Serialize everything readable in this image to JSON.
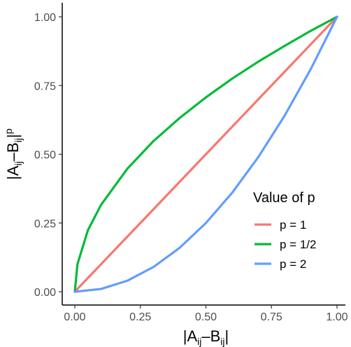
{
  "chart_data": {
    "type": "line",
    "xlabel": {
      "base": "|A",
      "sub1": "ij",
      "mid": "–B",
      "sub2": "ij",
      "end": "|"
    },
    "ylabel": {
      "base": "|A",
      "sub1": "ij",
      "mid": "–B",
      "sub2": "ij",
      "end": "|",
      "sup": "p"
    },
    "xlim": [
      0,
      1
    ],
    "ylim": [
      0,
      1
    ],
    "x_ticks": [
      0,
      0.25,
      0.5,
      0.75,
      1
    ],
    "y_ticks": [
      0,
      0.25,
      0.5,
      0.75,
      1
    ],
    "x_tick_labels": [
      "0.00",
      "0.25",
      "0.50",
      "0.75",
      "1.00"
    ],
    "y_tick_labels": [
      "0.00",
      "0.25",
      "0.50",
      "0.75",
      "1.00"
    ],
    "grid": false,
    "legend": {
      "title": "Value of p",
      "position": "right",
      "entries": [
        "p = 1",
        "p = 1/2",
        "p = 2"
      ]
    },
    "series": [
      {
        "name": "p = 1",
        "color": "#F8766D",
        "x": [
          0,
          0.1,
          0.2,
          0.3,
          0.4,
          0.5,
          0.6,
          0.7,
          0.8,
          0.9,
          1
        ],
        "y": [
          0,
          0.1,
          0.2,
          0.3,
          0.4,
          0.5,
          0.6,
          0.7,
          0.8,
          0.9,
          1
        ]
      },
      {
        "name": "p = 1/2",
        "color": "#00BA38",
        "x": [
          0,
          0.01,
          0.05,
          0.1,
          0.2,
          0.3,
          0.4,
          0.5,
          0.6,
          0.7,
          0.8,
          0.9,
          1
        ],
        "y": [
          0,
          0.1,
          0.224,
          0.316,
          0.447,
          0.548,
          0.632,
          0.707,
          0.775,
          0.837,
          0.894,
          0.949,
          1
        ]
      },
      {
        "name": "p = 2",
        "color": "#619CFF",
        "x": [
          0,
          0.1,
          0.2,
          0.3,
          0.4,
          0.5,
          0.6,
          0.7,
          0.8,
          0.9,
          1
        ],
        "y": [
          0,
          0.01,
          0.04,
          0.09,
          0.16,
          0.25,
          0.36,
          0.49,
          0.64,
          0.81,
          1
        ]
      }
    ]
  }
}
